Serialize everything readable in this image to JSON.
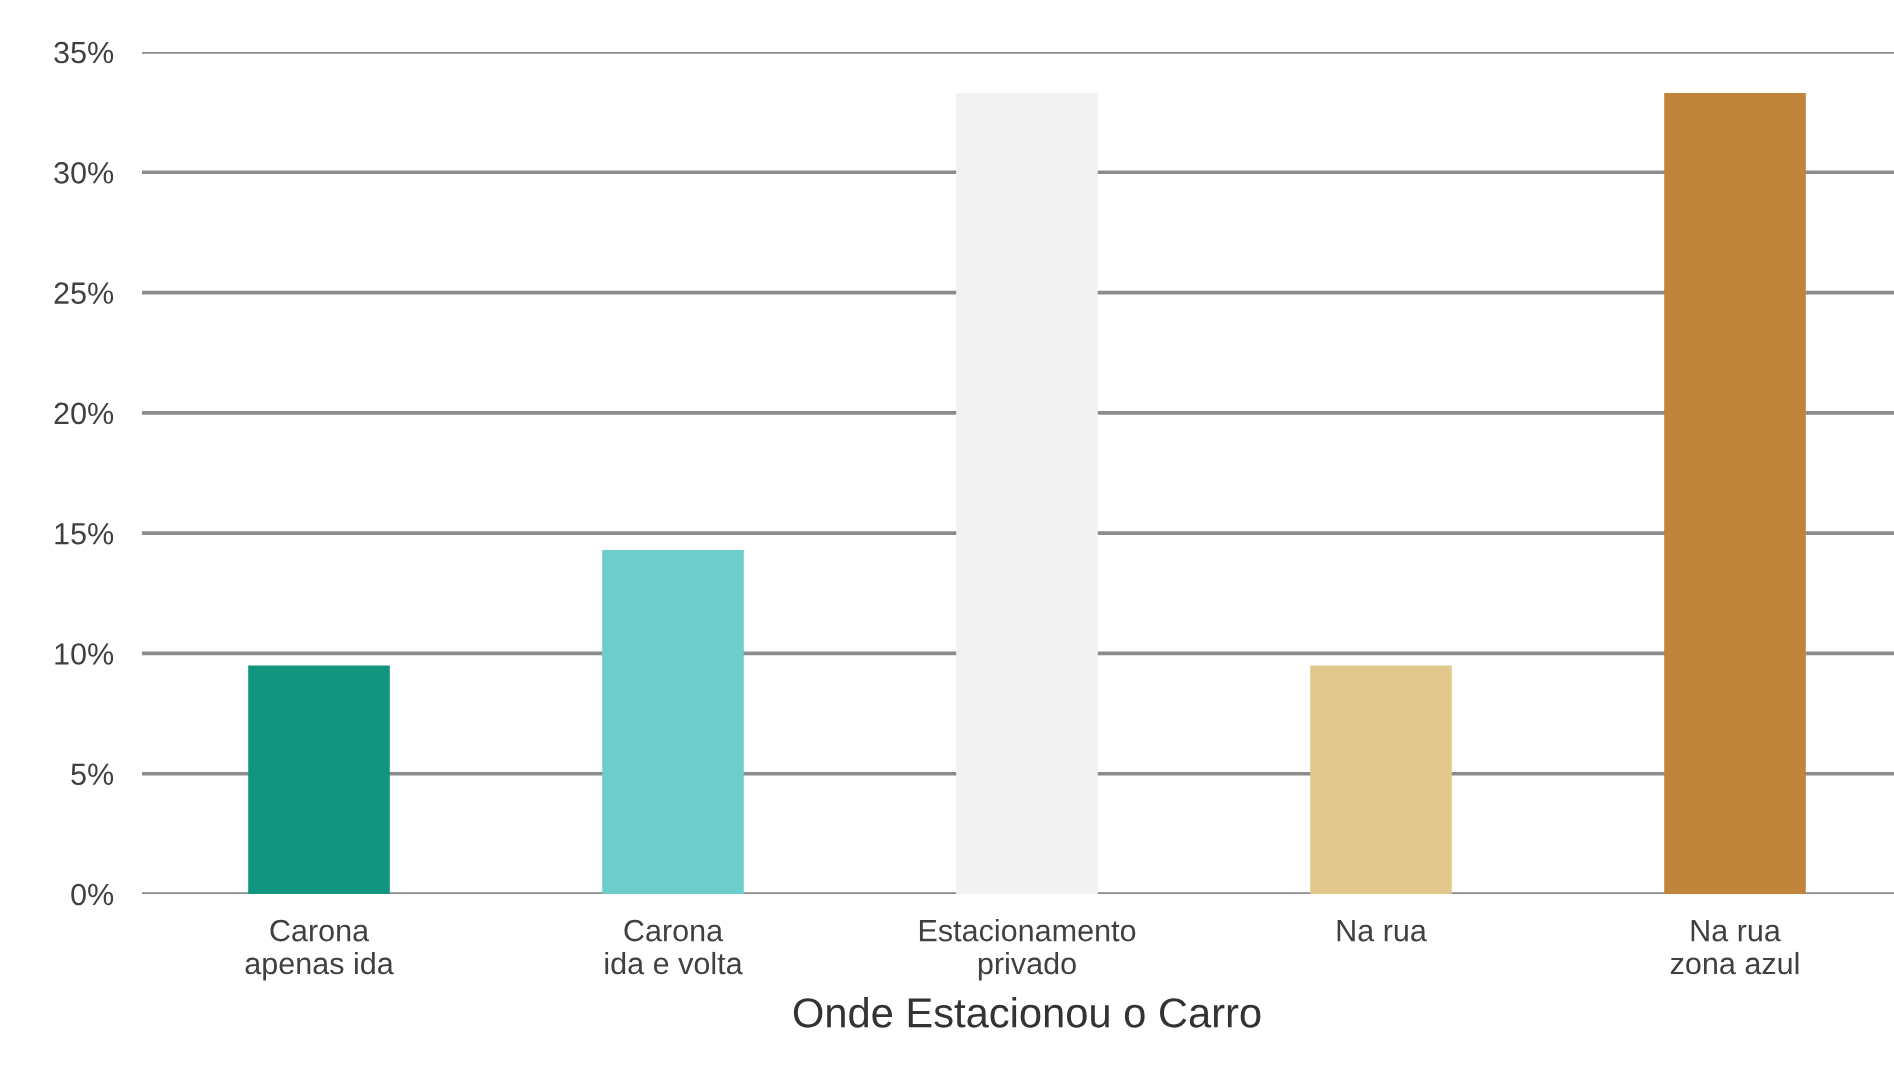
{
  "chart_data": {
    "type": "bar",
    "categories": [
      "Carona\napenas ida",
      "Carona\nida e volta",
      "Estacionamento\nprivado",
      "Na rua",
      "Na rua\nzona azul"
    ],
    "values": [
      9.5,
      14.3,
      33.3,
      9.5,
      33.3
    ],
    "colors": [
      "#12957f",
      "#6dcccc",
      "#f2f2f2",
      "#e2c88c",
      "#c0843a"
    ],
    "xlabel": "Onde Estacionou o Carro",
    "ylim": [
      0,
      35
    ],
    "yticks": [
      {
        "value": 0,
        "label": "0%"
      },
      {
        "value": 5,
        "label": "5%"
      },
      {
        "value": 10,
        "label": "10%"
      },
      {
        "value": 15,
        "label": "15%"
      },
      {
        "value": 20,
        "label": "20%"
      },
      {
        "value": 25,
        "label": "25%"
      },
      {
        "value": 30,
        "label": "30%"
      },
      {
        "value": 35,
        "label": "35%"
      }
    ],
    "grid": "y"
  }
}
